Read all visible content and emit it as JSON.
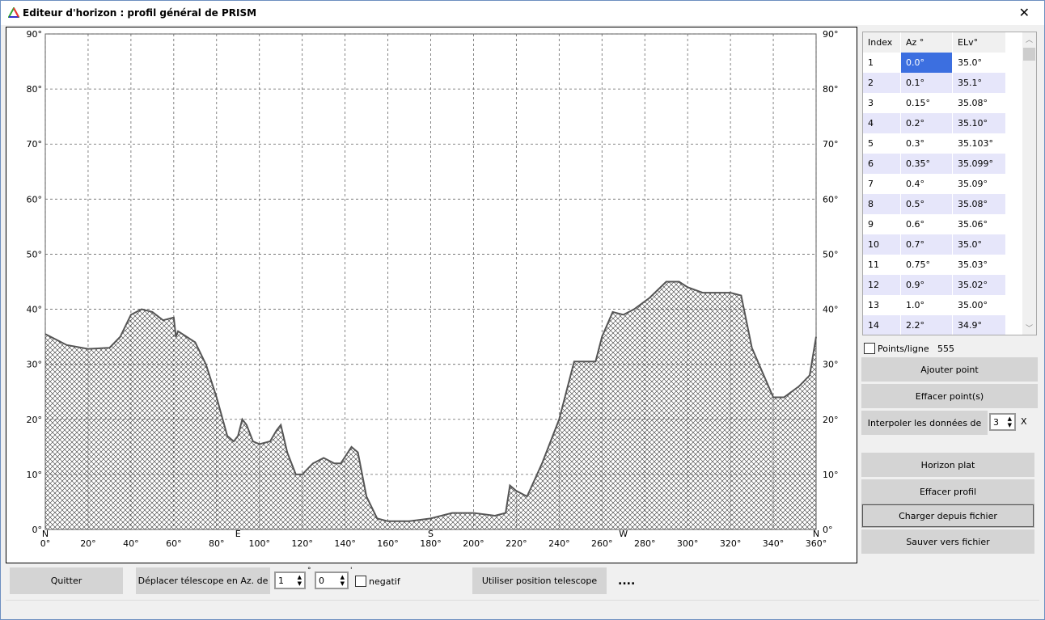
{
  "window": {
    "title": "Editeur d'horizon : profil général de PRISM",
    "close_icon": "close-icon"
  },
  "table": {
    "headers": [
      "Index",
      "Az °",
      "ELv°"
    ],
    "rows": [
      [
        "1",
        "0.0°",
        "35.0°"
      ],
      [
        "2",
        "0.1°",
        "35.1°"
      ],
      [
        "3",
        "0.15°",
        "35.08°"
      ],
      [
        "4",
        "0.2°",
        "35.10°"
      ],
      [
        "5",
        "0.3°",
        "35.103°"
      ],
      [
        "6",
        "0.35°",
        "35.099°"
      ],
      [
        "7",
        "0.4°",
        "35.09°"
      ],
      [
        "8",
        "0.5°",
        "35.08°"
      ],
      [
        "9",
        "0.6°",
        "35.06°"
      ],
      [
        "10",
        "0.7°",
        "35.0°"
      ],
      [
        "11",
        "0.75°",
        "35.03°"
      ],
      [
        "12",
        "0.9°",
        "35.02°"
      ],
      [
        "13",
        "1.0°",
        "35.00°"
      ],
      [
        "14",
        "2.2°",
        "34.9°"
      ]
    ],
    "selected_color": "#3c6fe0",
    "alt_row_color": "#e6e6fa"
  },
  "right": {
    "points_ligne": "Points/ligne",
    "points_count": "555",
    "ajouter": "Ajouter point",
    "effacer_points": "Effacer point(s)",
    "interpoler": "Interpoler les données de",
    "interp_value": "3",
    "interp_unit": "X",
    "horizon_plat": "Horizon plat",
    "effacer_profil": "Effacer profil",
    "charger": "Charger depuis fichier",
    "sauver": "Sauver vers fichier"
  },
  "bottom": {
    "quitter": "Quitter",
    "deplacer": "Déplacer télescope en Az. de",
    "deg_value": "1",
    "deg_unit": "°",
    "min_value": "0",
    "min_unit": "'",
    "negatif": "negatif",
    "utiliser": "Utiliser position telescope",
    "status": "...."
  },
  "chart_data": {
    "type": "area",
    "xlim": [
      0,
      360
    ],
    "ylim": [
      0,
      90
    ],
    "grid": true,
    "fill": "crosshatch",
    "x_ticks": [
      "0°",
      "20°",
      "40°",
      "60°",
      "80°",
      "100°",
      "120°",
      "140°",
      "160°",
      "180°",
      "200°",
      "220°",
      "240°",
      "260°",
      "280°",
      "300°",
      "320°",
      "340°",
      "360°"
    ],
    "y_ticks": [
      "0°",
      "10°",
      "20°",
      "30°",
      "40°",
      "50°",
      "60°",
      "70°",
      "80°",
      "90°"
    ],
    "compass": [
      {
        "az": 0,
        "label": "N"
      },
      {
        "az": 90,
        "label": "E"
      },
      {
        "az": 180,
        "label": "S"
      },
      {
        "az": 270,
        "label": "W"
      },
      {
        "az": 360,
        "label": "N"
      }
    ],
    "x": [
      0,
      5,
      10,
      20,
      30,
      35,
      40,
      45,
      50,
      55,
      60,
      61,
      62,
      70,
      75,
      80,
      85,
      88,
      90,
      92,
      94,
      97,
      100,
      105,
      108,
      110,
      113,
      117,
      120,
      125,
      130,
      135,
      138,
      143,
      146,
      150,
      155,
      160,
      170,
      180,
      190,
      200,
      210,
      215,
      217,
      220,
      225,
      232,
      240,
      247,
      257,
      260,
      265,
      270,
      275,
      282,
      290,
      296,
      300,
      307,
      320,
      325,
      330,
      340,
      345,
      352,
      357,
      360
    ],
    "y": [
      35.5,
      34.5,
      33.5,
      32.8,
      33,
      35,
      39,
      40,
      39.5,
      38,
      38.5,
      35,
      36,
      34,
      30,
      24,
      17,
      16,
      17,
      20,
      19,
      16,
      15.5,
      16,
      18,
      19,
      14,
      10,
      10,
      12,
      13,
      12,
      12,
      15,
      14,
      6,
      2,
      1.5,
      1.5,
      2,
      3,
      3,
      2.5,
      3,
      8,
      7,
      6,
      12,
      20,
      30.5,
      30.5,
      35,
      39.5,
      39,
      40,
      42,
      45,
      45,
      44,
      43,
      43,
      42.5,
      33,
      24,
      24,
      26,
      28,
      35
    ]
  }
}
